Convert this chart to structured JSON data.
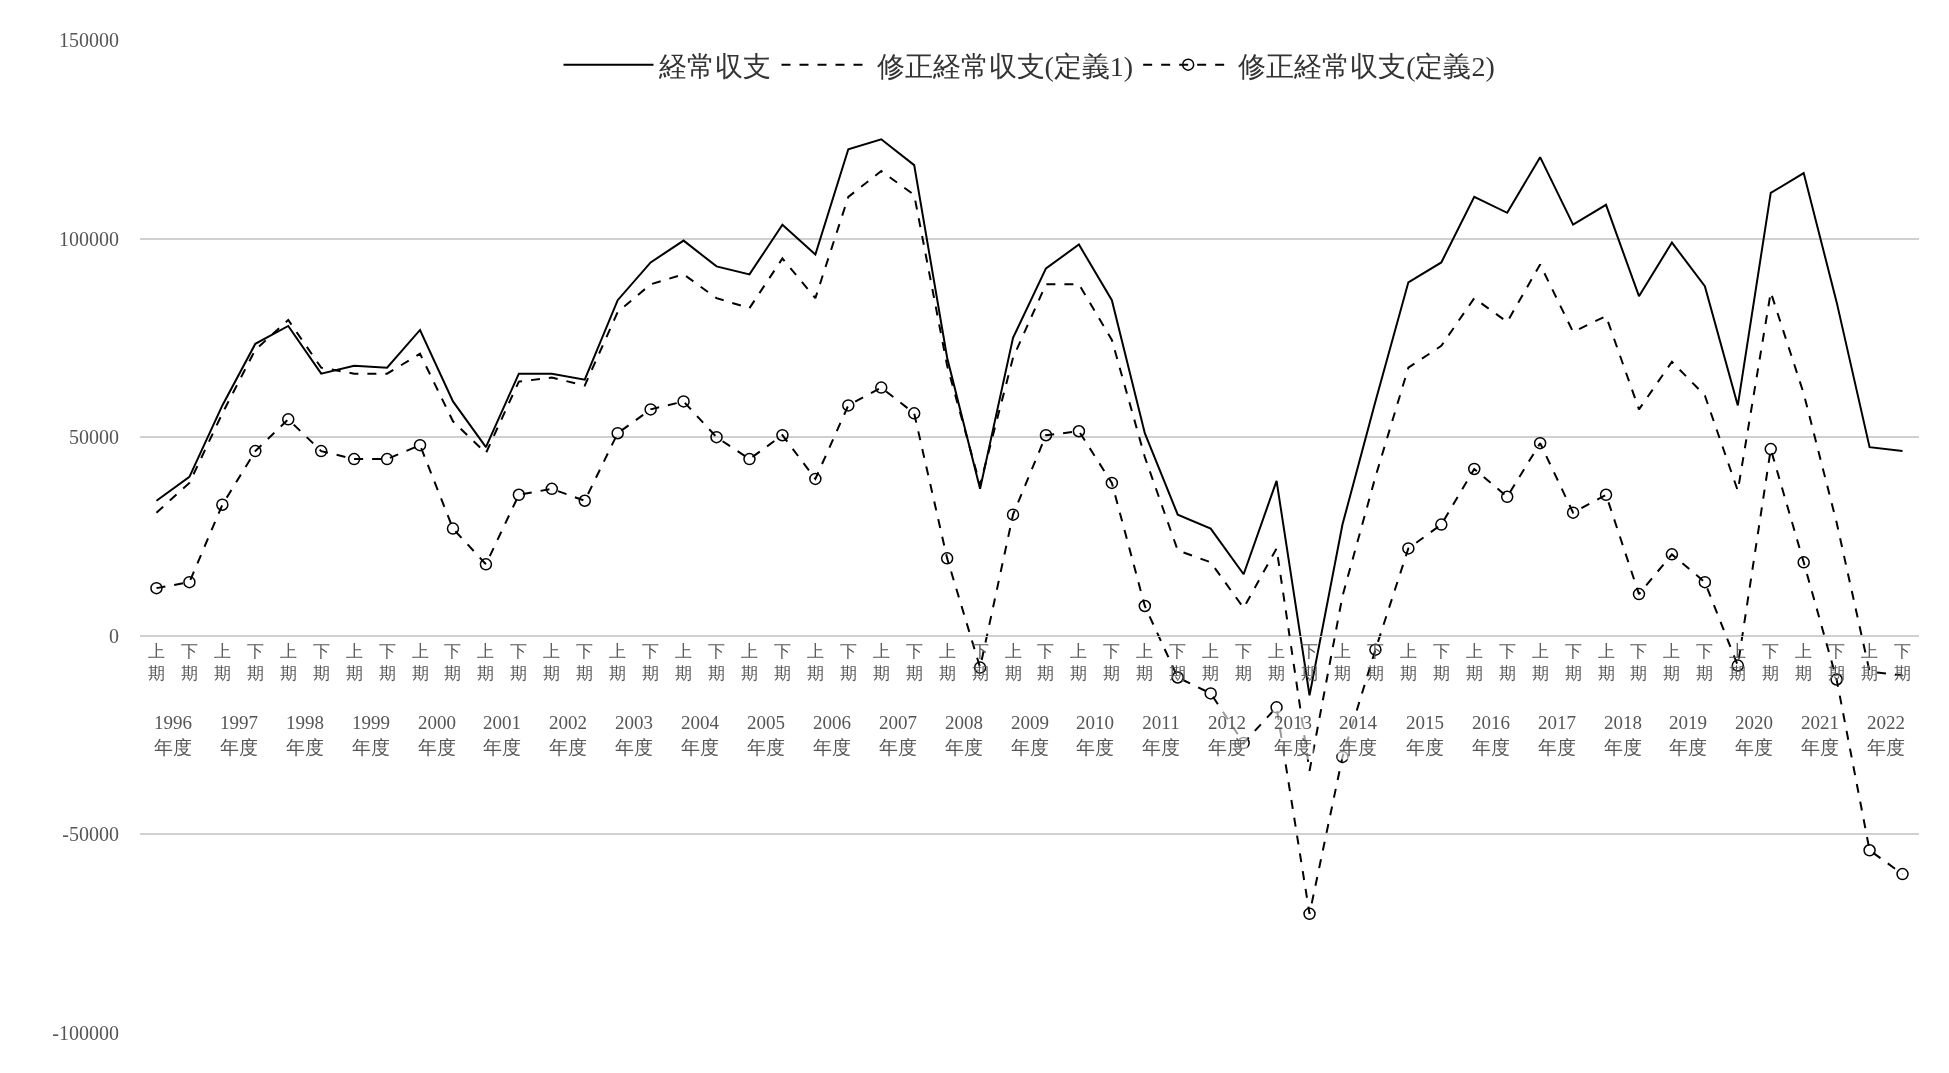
{
  "chart_data": {
    "type": "line",
    "categories": [
      "上期",
      "下期",
      "上期",
      "下期",
      "上期",
      "下期",
      "上期",
      "下期",
      "上期",
      "下期",
      "上期",
      "下期",
      "上期",
      "下期",
      "上期",
      "下期",
      "上期",
      "下期",
      "上期",
      "下期",
      "上期",
      "下期",
      "上期",
      "下期",
      "上期",
      "下期",
      "上期",
      "下期",
      "上期",
      "下期",
      "上期",
      "下期",
      "上期",
      "下期",
      "上期",
      "下期",
      "上期",
      "下期",
      "上期",
      "下期",
      "上期",
      "下期",
      "上期",
      "下期",
      "上期",
      "下期",
      "上期",
      "下期",
      "上期",
      "下期",
      "上期",
      "下期",
      "上期",
      "下期"
    ],
    "annotations": [
      "1996 年度",
      "1997 年度",
      "1998 年度",
      "1999 年度",
      "2000 年度",
      "2001 年度",
      "2002 年度",
      "2003 年度",
      "2004 年度",
      "2005 年度",
      "2006 年度",
      "2007 年度",
      "2008 年度",
      "2009 年度",
      "2010 年度",
      "2011 年度",
      "2012 年度",
      "2013 年度",
      "2014 年度",
      "2015 年度",
      "2016 年度",
      "2017 年度",
      "2018 年度",
      "2019 年度",
      "2020 年度",
      "2021 年度",
      "2022 年度"
    ],
    "series": [
      {
        "name": "経常収支",
        "color": "#000000",
        "line_style": "solid",
        "marker": "none",
        "values": [
          34000,
          40000,
          58000,
          73500,
          78000,
          66000,
          68000,
          67500,
          77000,
          59000,
          47500,
          66000,
          66000,
          64500,
          84500,
          94000,
          99500,
          93000,
          91000,
          103500,
          96000,
          122500,
          125000,
          118500,
          70000,
          37000,
          75000,
          92500,
          98500,
          84500,
          51000,
          30500,
          27000,
          15500,
          39000,
          -15000,
          28000,
          59000,
          89000,
          94000,
          110500,
          106500,
          120500,
          103500,
          108500,
          85500,
          99000,
          88000,
          58000,
          111500,
          116500,
          84000,
          47500,
          46500
        ]
      },
      {
        "name": "修正経常収支(定義1)",
        "color": "#000000",
        "line_style": "dashed",
        "marker": "none",
        "values": [
          31000,
          38500,
          56000,
          72000,
          79500,
          67500,
          66000,
          66000,
          71000,
          54000,
          46000,
          64000,
          65000,
          63000,
          81500,
          88500,
          91000,
          85000,
          82500,
          95000,
          85000,
          110500,
          117000,
          111000,
          68000,
          38000,
          70000,
          88500,
          88500,
          74500,
          45000,
          21500,
          18500,
          7000,
          22000,
          -34000,
          10000,
          40000,
          67500,
          73000,
          85000,
          79000,
          93500,
          76500,
          80500,
          57000,
          69000,
          60500,
          36500,
          86500,
          61000,
          28500,
          -9000,
          -10000
        ]
      },
      {
        "name": "修正経常収支(定義2)",
        "color": "#000000",
        "line_style": "dashed",
        "marker": "circle",
        "values": [
          12000,
          13500,
          33000,
          46500,
          54500,
          46500,
          44500,
          44500,
          48000,
          27000,
          18000,
          35500,
          37000,
          34000,
          51000,
          57000,
          59000,
          50000,
          44500,
          50500,
          39500,
          58000,
          62500,
          56000,
          19500,
          -8000,
          30500,
          50500,
          51500,
          38500,
          7500,
          -10500,
          -14500,
          -27000,
          -18000,
          -70000,
          -30500,
          -3500,
          22000,
          28000,
          42000,
          35000,
          48500,
          31000,
          35500,
          10500,
          20500,
          13500,
          -7500,
          47000,
          18500,
          -11000,
          -54000,
          -60000
        ]
      }
    ],
    "ylim": [
      -100000,
      150000
    ],
    "yticks": [
      -100000,
      -50000,
      0,
      50000,
      100000,
      150000
    ],
    "grid": "y",
    "legend": "top"
  }
}
